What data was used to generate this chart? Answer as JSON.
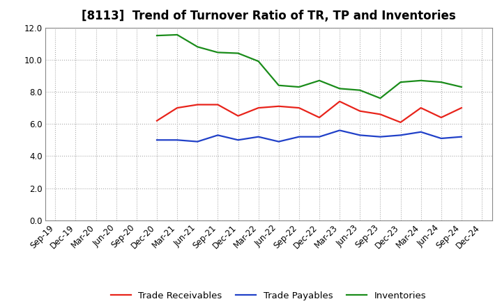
{
  "title": "[8113]  Trend of Turnover Ratio of TR, TP and Inventories",
  "ylim": [
    0.0,
    12.0
  ],
  "yticks": [
    0.0,
    2.0,
    4.0,
    6.0,
    8.0,
    10.0,
    12.0
  ],
  "x_labels": [
    "Sep-19",
    "Dec-19",
    "Mar-20",
    "Jun-20",
    "Sep-20",
    "Dec-20",
    "Mar-21",
    "Jun-21",
    "Sep-21",
    "Dec-21",
    "Mar-22",
    "Jun-22",
    "Sep-22",
    "Dec-22",
    "Mar-23",
    "Jun-23",
    "Sep-23",
    "Dec-23",
    "Mar-24",
    "Jun-24",
    "Sep-24",
    "Dec-24"
  ],
  "trade_receivables": [
    null,
    null,
    null,
    null,
    null,
    6.2,
    7.0,
    7.2,
    7.2,
    6.5,
    7.0,
    7.1,
    7.0,
    6.4,
    7.4,
    6.8,
    6.6,
    6.1,
    7.0,
    6.4,
    7.0,
    null
  ],
  "trade_payables": [
    null,
    null,
    null,
    null,
    null,
    5.0,
    5.0,
    4.9,
    5.3,
    5.0,
    5.2,
    4.9,
    5.2,
    5.2,
    5.6,
    5.3,
    5.2,
    5.3,
    5.5,
    5.1,
    5.2,
    null
  ],
  "inventories": [
    null,
    null,
    null,
    null,
    null,
    11.5,
    11.55,
    10.8,
    10.45,
    10.4,
    9.9,
    8.4,
    8.3,
    8.7,
    8.2,
    8.1,
    7.6,
    8.6,
    8.7,
    8.6,
    8.3,
    null
  ],
  "tr_color": "#e8231a",
  "tp_color": "#2040c8",
  "inv_color": "#1a8c1a",
  "legend_labels": [
    "Trade Receivables",
    "Trade Payables",
    "Inventories"
  ],
  "title_fontsize": 12,
  "tick_fontsize": 8.5,
  "legend_fontsize": 9.5,
  "line_width": 1.6,
  "background_color": "#ffffff",
  "grid_color": "#aaaaaa"
}
